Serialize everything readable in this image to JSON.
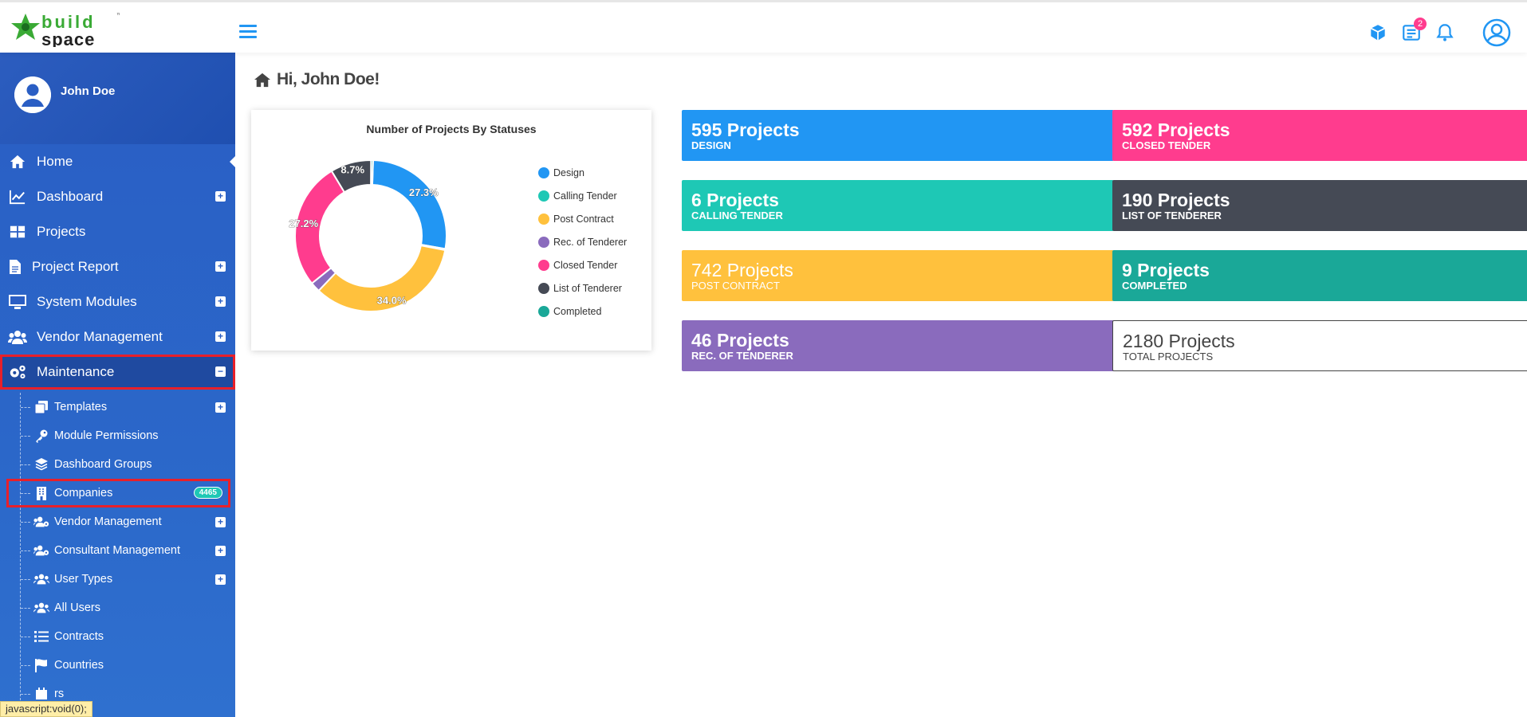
{
  "brand": {
    "line1": "build",
    "line2": "space",
    "tm": "™"
  },
  "header": {
    "notifications_count": "2"
  },
  "user": {
    "name": "John Doe"
  },
  "sidebar": {
    "items": [
      {
        "label": "Home",
        "icon": "home-icon"
      },
      {
        "label": "Dashboard",
        "icon": "chart-line-icon"
      },
      {
        "label": "Projects",
        "icon": "grid-icon"
      },
      {
        "label": "Project Report",
        "icon": "file-icon"
      },
      {
        "label": "System Modules",
        "icon": "monitor-icon"
      },
      {
        "label": "Vendor Management",
        "icon": "users-icon"
      },
      {
        "label": "Maintenance",
        "icon": "gears-icon"
      }
    ],
    "sub_items": [
      {
        "label": "Templates",
        "icon": "copy-icon"
      },
      {
        "label": "Module Permissions",
        "icon": "key-icon"
      },
      {
        "label": "Dashboard Groups",
        "icon": "layers-icon"
      },
      {
        "label": "Companies",
        "icon": "building-icon",
        "count": "4465"
      },
      {
        "label": "Vendor Management",
        "icon": "users-cog-icon"
      },
      {
        "label": "Consultant Management",
        "icon": "users-cog-icon"
      },
      {
        "label": "User Types",
        "icon": "users-icon"
      },
      {
        "label": "All Users",
        "icon": "users-icon"
      },
      {
        "label": "Contracts",
        "icon": "list-icon"
      },
      {
        "label": "Countries",
        "icon": "flag-icon"
      },
      {
        "label": "rs",
        "icon": "calendar-icon"
      }
    ]
  },
  "status_bar": "javascript:void(0);",
  "main": {
    "greeting": "Hi, John Doe!"
  },
  "chart_data": {
    "type": "pie",
    "title": "Number of Projects By Statuses",
    "categories": [
      "Design",
      "Calling Tender",
      "Post Contract",
      "Rec. of Tenderer",
      "Closed Tender",
      "List of Tenderer",
      "Completed"
    ],
    "values": [
      595,
      6,
      742,
      46,
      592,
      190,
      9
    ],
    "colors": [
      "#2196f3",
      "#1ec8b5",
      "#ffc13d",
      "#8a6bbd",
      "#ff3c8e",
      "#454a55",
      "#1aa898"
    ],
    "data_labels": [
      "27.3%",
      "",
      "34.0%",
      "",
      "27.2%",
      "8.7%",
      ""
    ]
  },
  "cards": [
    {
      "value": "595 Projects",
      "label": "DESIGN",
      "color": "#2196f3"
    },
    {
      "value": "592 Projects",
      "label": "CLOSED TENDER",
      "color": "#ff3c8e"
    },
    {
      "value": "6 Projects",
      "label": "CALLING TENDER",
      "color": "#1ec8b5"
    },
    {
      "value": "190 Projects",
      "label": "LIST OF TENDERER",
      "color": "#454a55"
    },
    {
      "value": "742 Projects",
      "label": "POST CONTRACT",
      "color": "#ffc13d"
    },
    {
      "value": "9 Projects",
      "label": "COMPLETED",
      "color": "#1aa898"
    },
    {
      "value": "46 Projects",
      "label": "REC. OF TENDERER",
      "color": "#8a6bbd"
    },
    {
      "value": "2180 Projects",
      "label": "TOTAL PROJECTS",
      "color": "#ffffff"
    }
  ]
}
